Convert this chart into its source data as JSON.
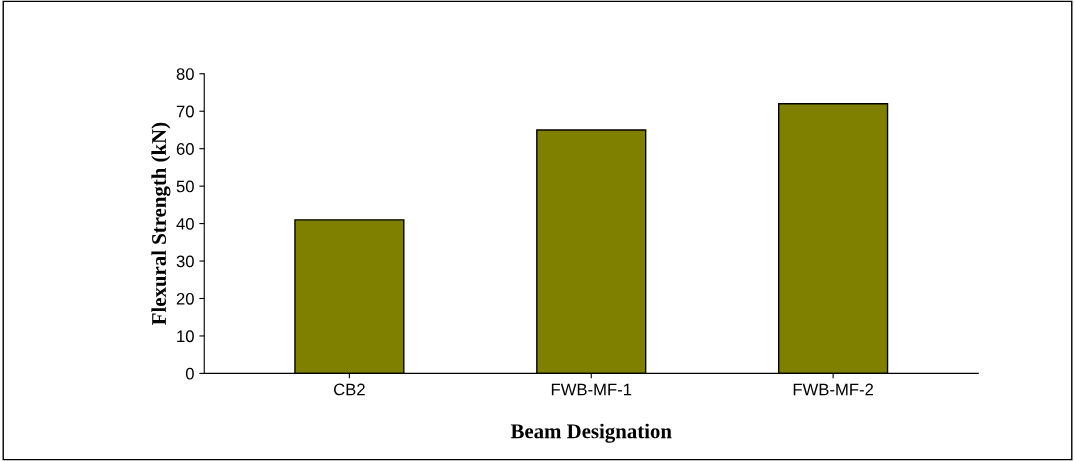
{
  "chart_data": {
    "type": "bar",
    "xlabel": "Beam Designation",
    "ylabel": "Flexural Strength (kN)",
    "categories": [
      "CB2",
      "FWB-MF-1",
      "FWB-MF-2"
    ],
    "values": [
      41,
      65,
      72
    ],
    "color": "#808000",
    "ylim": [
      0,
      80
    ],
    "yticks": [
      0,
      10,
      20,
      30,
      40,
      50,
      60,
      70,
      80
    ],
    "grid": false
  }
}
